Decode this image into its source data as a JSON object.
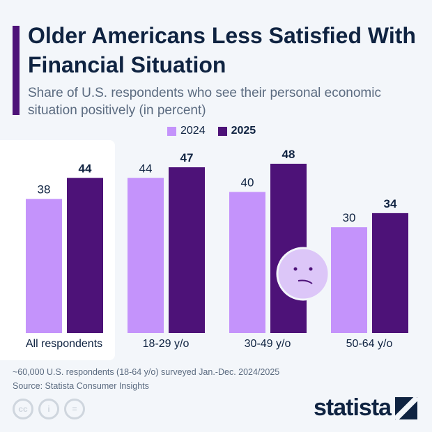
{
  "title": "Older Americans Less Satisfied With Financial Situation",
  "subtitle": "Share of U.S. respondents who see their personal economic situation positively (in percent)",
  "note": "~60,000 U.S. respondents (18-64 y/o) surveyed Jan.-Dec. 2024/2025",
  "source": "Source: Statista Consumer Insights",
  "brand": "statista",
  "colors": {
    "2024": "#c493fb",
    "2025": "#4d1278",
    "face": "#dcc6f8"
  },
  "chart_data": {
    "type": "bar",
    "categories": [
      "All respondents",
      "18-29 y/o",
      "30-49  y/o",
      "50-64  y/o"
    ],
    "series": [
      {
        "name": "2024",
        "values": [
          38,
          44,
          40,
          30
        ]
      },
      {
        "name": "2025",
        "values": [
          44,
          47,
          48,
          34
        ]
      }
    ],
    "ylim": [
      0,
      48
    ],
    "legend": "top-center",
    "grid": false
  }
}
